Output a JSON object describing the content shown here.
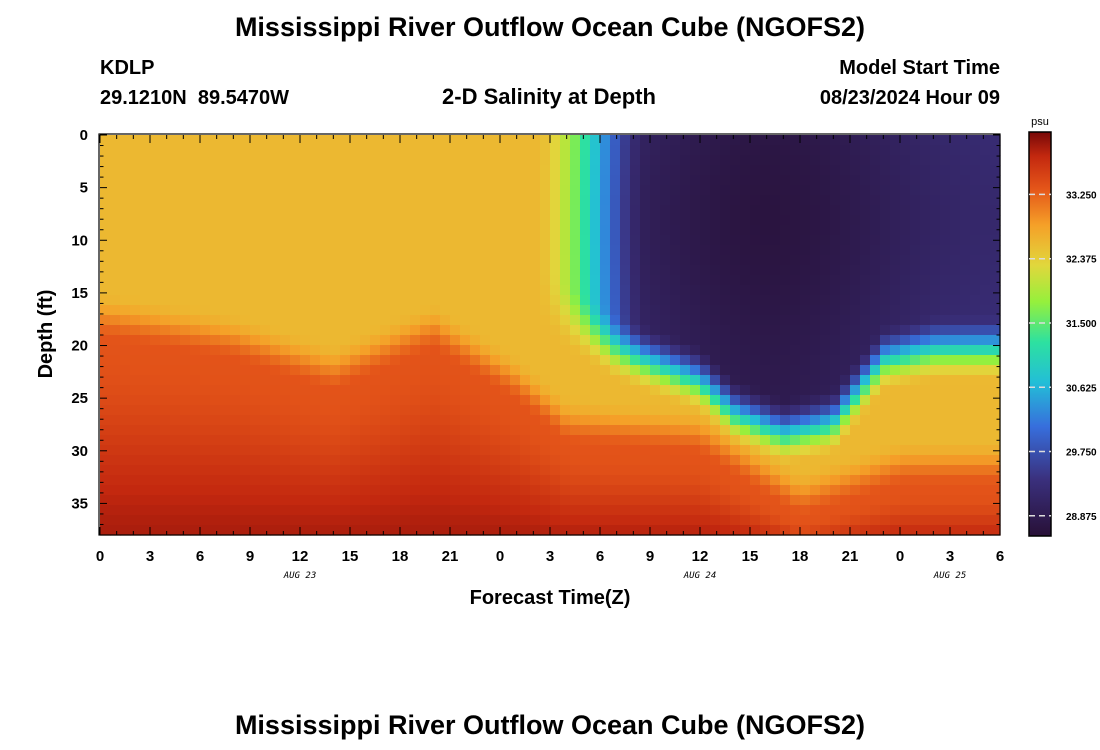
{
  "header": {
    "title": "Mississippi River Outflow Ocean Cube (NGOFS2)",
    "station": "KDLP",
    "location": "29.1210N  89.5470W",
    "subtitle": "2-D Salinity at Depth",
    "model_start_label": "Model Start Time",
    "model_start_value": "08/23/2024 Hour 09"
  },
  "footer": {
    "title": "Mississippi River Outflow Ocean Cube (NGOFS2)"
  },
  "chart_data": {
    "type": "heatmap",
    "title": "2-D Salinity at Depth",
    "xlabel": "Forecast Time(Z)",
    "ylabel": "Depth (ft)",
    "x_tick_labels": [
      "0",
      "3",
      "6",
      "9",
      "12",
      "15",
      "18",
      "21",
      "0",
      "3",
      "6",
      "9",
      "12",
      "15",
      "18",
      "21",
      "0",
      "3",
      "6"
    ],
    "x_range_hours": [
      0,
      54
    ],
    "date_labels": [
      {
        "text": "AUG 23",
        "hour": 12
      },
      {
        "text": "AUG 24",
        "hour": 36
      },
      {
        "text": "AUG 25",
        "hour": 51
      }
    ],
    "y_tick_labels": [
      "0",
      "5",
      "10",
      "15",
      "20",
      "25",
      "30",
      "35"
    ],
    "y_range_ft": [
      0,
      38
    ],
    "y_inverted": true,
    "colorbar": {
      "unit": "psu",
      "tick_labels": [
        "33.250",
        "32.375",
        "31.500",
        "30.625",
        "29.750",
        "28.875"
      ],
      "range": [
        28.6,
        34.1
      ]
    },
    "salinity_model": {
      "surface_layer_psu": 32.6,
      "surface_to_front_hour": 26,
      "front_width_hours": 7,
      "plume_min_psu": 28.7,
      "plume_core_hour": 40,
      "plume_base_depth_ft": [
        {
          "hour": 26,
          "depth": 17
        },
        {
          "hour": 31,
          "depth": 22
        },
        {
          "hour": 36,
          "depth": 25
        },
        {
          "hour": 38,
          "depth": 28
        },
        {
          "hour": 41,
          "depth": 30
        },
        {
          "hour": 44,
          "depth": 29
        },
        {
          "hour": 47,
          "depth": 23
        },
        {
          "hour": 50,
          "depth": 22
        },
        {
          "hour": 54,
          "depth": 22
        }
      ],
      "halocline_depth_ft": [
        {
          "hour": 0,
          "depth": 18
        },
        {
          "hour": 8,
          "depth": 20
        },
        {
          "hour": 14,
          "depth": 23
        },
        {
          "hour": 20,
          "depth": 19
        },
        {
          "hour": 25,
          "depth": 24
        },
        {
          "hour": 28,
          "depth": 28
        },
        {
          "hour": 36,
          "depth": 29
        },
        {
          "hour": 42,
          "depth": 35
        },
        {
          "hour": 48,
          "depth": 32
        },
        {
          "hour": 54,
          "depth": 32
        }
      ],
      "bottom_psu": 33.9,
      "mid_psu": 33.35
    }
  }
}
